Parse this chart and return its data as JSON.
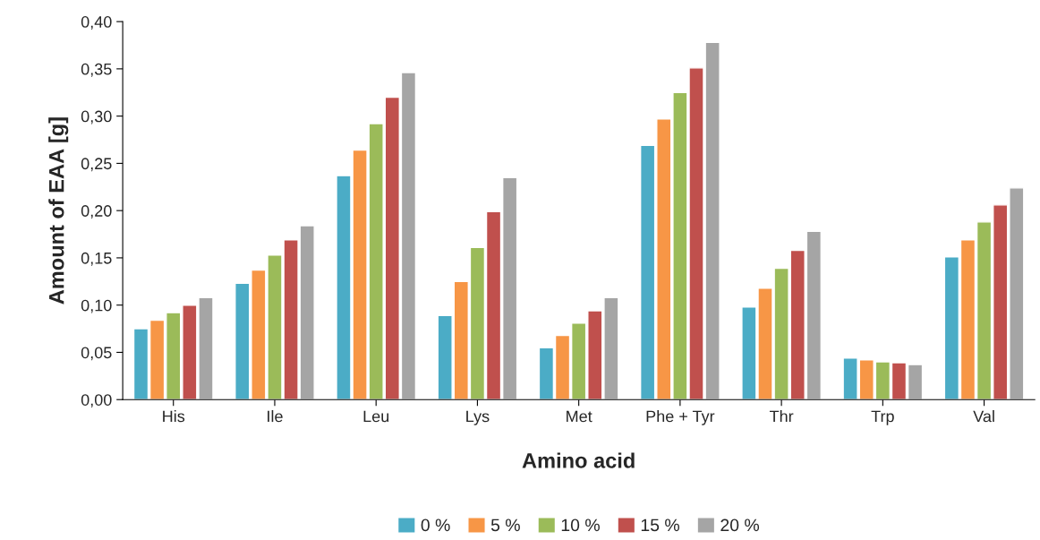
{
  "chart_data": {
    "type": "bar",
    "xlabel": "Amino acid",
    "ylabel": "Amount of EAA [g]",
    "categories": [
      "His",
      "Ile",
      "Leu",
      "Lys",
      "Met",
      "Phe + Tyr",
      "Thr",
      "Trp",
      "Val"
    ],
    "series": [
      {
        "name": "0 %",
        "color": "#4bacc6",
        "values": [
          0.075,
          0.123,
          0.237,
          0.089,
          0.055,
          0.269,
          0.098,
          0.044,
          0.151
        ]
      },
      {
        "name": "5 %",
        "color": "#f79646",
        "values": [
          0.084,
          0.137,
          0.264,
          0.125,
          0.068,
          0.297,
          0.118,
          0.042,
          0.169
        ]
      },
      {
        "name": "10 %",
        "color": "#9bbb59",
        "values": [
          0.092,
          0.153,
          0.292,
          0.161,
          0.081,
          0.325,
          0.139,
          0.04,
          0.188
        ]
      },
      {
        "name": "15 %",
        "color": "#c0504d",
        "values": [
          0.1,
          0.169,
          0.32,
          0.199,
          0.094,
          0.351,
          0.158,
          0.039,
          0.206
        ]
      },
      {
        "name": "20 %",
        "color": "#a5a5a5",
        "values": [
          0.108,
          0.184,
          0.346,
          0.235,
          0.108,
          0.378,
          0.178,
          0.037,
          0.224
        ]
      }
    ],
    "ylim": [
      0,
      0.4
    ],
    "yticks": [
      {
        "value": 0,
        "label": "0,00"
      },
      {
        "value": 0.05,
        "label": "0,05"
      },
      {
        "value": 0.1,
        "label": "0,10"
      },
      {
        "value": 0.15,
        "label": "0,15"
      },
      {
        "value": 0.2,
        "label": "0,20"
      },
      {
        "value": 0.25,
        "label": "0,25"
      },
      {
        "value": 0.3,
        "label": "0,30"
      },
      {
        "value": 0.35,
        "label": "0,35"
      },
      {
        "value": 0.4,
        "label": "0,40"
      }
    ],
    "grid": false,
    "legend": "bottom"
  }
}
